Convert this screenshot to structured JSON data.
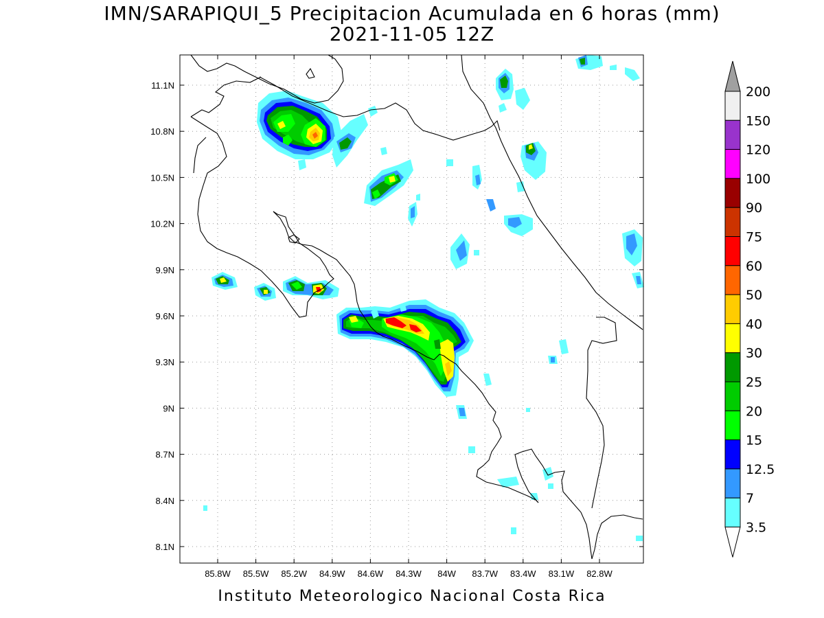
{
  "title": {
    "line1": "IMN/SARAPIQUI_5 Precipitacion Acumulada en 6 horas (mm)",
    "line2": "2021-11-05 12Z"
  },
  "footer": "Instituto Meteorologico Nacional Costa Rica",
  "map": {
    "lon_range": [
      -86.0,
      -82.6
    ],
    "lat_range": [
      8.0,
      11.3
    ],
    "x_tick_labels": [
      "85.8W",
      "85.5W",
      "85.2W",
      "84.9W",
      "84.6W",
      "84.3W",
      "84W",
      "83.7W",
      "83.4W",
      "83.1W",
      "82.8W"
    ],
    "y_tick_labels": [
      "11.1N",
      "10.8N",
      "10.5N",
      "10.2N",
      "9.9N",
      "9.6N",
      "9.3N",
      "9N",
      "8.7N",
      "8.4N",
      "8.1N"
    ],
    "grid": "dotted"
  },
  "colorbar": {
    "labels": [
      "3.5",
      "7",
      "12.5",
      "15",
      "20",
      "25",
      "30",
      "40",
      "50",
      "60",
      "75",
      "90",
      "100",
      "120",
      "150",
      "200"
    ],
    "colors": [
      "#66ffff",
      "#3399ff",
      "#0000ff",
      "#00ff00",
      "#00cc00",
      "#009900",
      "#ffff00",
      "#ffcc00",
      "#ff6600",
      "#ff0000",
      "#cc3300",
      "#990000",
      "#ff00ff",
      "#9933cc",
      "#f0f0f0"
    ],
    "top_triangle_color": "#a0a0a0",
    "bottom_triangle_color": "#ffffff"
  }
}
